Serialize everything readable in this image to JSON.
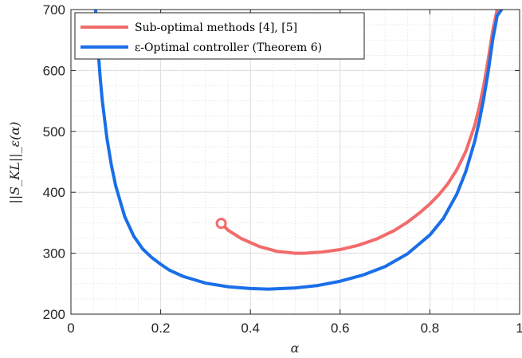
{
  "chart_data": {
    "type": "line",
    "xlabel": "α",
    "ylabel": "||S_KL||_ε(α)",
    "xlim": [
      0,
      1
    ],
    "ylim": [
      200,
      700
    ],
    "xticks": [
      0,
      0.2,
      0.4,
      0.6,
      0.8,
      1
    ],
    "xtick_labels": [
      "0",
      "0.2",
      "0.4",
      "0.6",
      "0.8",
      "1"
    ],
    "yticks": [
      200,
      300,
      400,
      500,
      600,
      700
    ],
    "ytick_labels": [
      "200",
      "300",
      "400",
      "500",
      "600",
      "700"
    ],
    "grid": true,
    "minor_grid": true,
    "legend_position": "top-left",
    "series": [
      {
        "name": "Sub-optimal methods [4], [5]",
        "color": "#f26b6b",
        "marker_at_start": "open-circle",
        "x": [
          0.335,
          0.35,
          0.38,
          0.42,
          0.46,
          0.5,
          0.52,
          0.56,
          0.6,
          0.64,
          0.68,
          0.72,
          0.75,
          0.78,
          0.8,
          0.82,
          0.84,
          0.86,
          0.88,
          0.9,
          0.91,
          0.92,
          0.93,
          0.94,
          0.95
        ],
        "values": [
          349,
          338,
          324,
          311,
          303,
          300,
          300,
          302,
          306,
          313,
          323,
          337,
          351,
          368,
          381,
          396,
          414,
          437,
          467,
          510,
          540,
          575,
          618,
          665,
          700
        ]
      },
      {
        "name": "ε-Optimal controller (Theorem 6)",
        "color": "#1a6fe8",
        "x": [
          0.055,
          0.06,
          0.065,
          0.07,
          0.08,
          0.09,
          0.1,
          0.12,
          0.14,
          0.16,
          0.18,
          0.2,
          0.22,
          0.25,
          0.3,
          0.35,
          0.4,
          0.44,
          0.5,
          0.55,
          0.6,
          0.65,
          0.7,
          0.75,
          0.8,
          0.83,
          0.86,
          0.88,
          0.9,
          0.91,
          0.92,
          0.93,
          0.94,
          0.95,
          0.96
        ],
        "values": [
          700,
          640,
          590,
          550,
          490,
          445,
          410,
          360,
          328,
          307,
          293,
          282,
          272,
          262,
          251,
          245,
          242,
          241,
          243,
          247,
          254,
          264,
          278,
          299,
          330,
          357,
          397,
          434,
          484,
          516,
          554,
          598,
          650,
          690,
          700
        ]
      }
    ]
  }
}
